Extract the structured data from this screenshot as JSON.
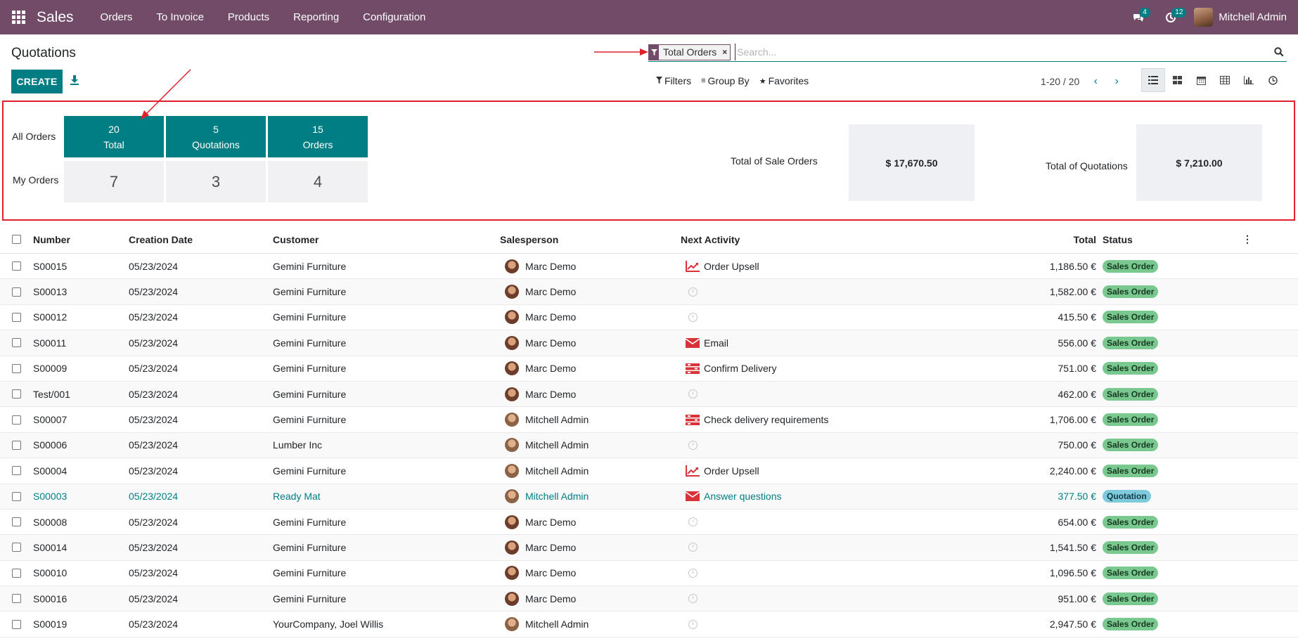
{
  "app": {
    "name": "Sales"
  },
  "menu": [
    "Orders",
    "To Invoice",
    "Products",
    "Reporting",
    "Configuration"
  ],
  "systray": {
    "messages_count": "4",
    "activities_count": "12",
    "user_name": "Mitchell Admin"
  },
  "page": {
    "title": "Quotations",
    "create_label": "CREATE"
  },
  "search": {
    "facet_label": "Total Orders",
    "placeholder": "Search..."
  },
  "filters": {
    "filters_label": "Filters",
    "groupby_label": "Group By",
    "favorites_label": "Favorites"
  },
  "pager": {
    "text": "1-20 / 20"
  },
  "dashboard": {
    "all_orders_label": "All Orders",
    "my_orders_label": "My Orders",
    "tiles": [
      {
        "count": "20",
        "label": "Total",
        "mine": "7"
      },
      {
        "count": "5",
        "label": "Quotations",
        "mine": "3"
      },
      {
        "count": "15",
        "label": "Orders",
        "mine": "4"
      }
    ],
    "sale_orders_label": "Total of Sale Orders",
    "sale_orders_value": "$ 17,670.50",
    "quotations_label": "Total of Quotations",
    "quotations_value": "$ 7,210.00"
  },
  "columns": {
    "number": "Number",
    "date": "Creation Date",
    "customer": "Customer",
    "salesperson": "Salesperson",
    "activity": "Next Activity",
    "total": "Total",
    "status": "Status"
  },
  "rows": [
    {
      "number": "S00015",
      "date": "05/23/2024",
      "customer": "Gemini Furniture",
      "salesperson": "Marc Demo",
      "activity": "Order Upsell",
      "activity_icon": "upsell-icon",
      "total": "1,186.50 €",
      "status": "Sales Order"
    },
    {
      "number": "S00013",
      "date": "05/23/2024",
      "customer": "Gemini Furniture",
      "salesperson": "Marc Demo",
      "activity": "",
      "activity_icon": "clock-icon",
      "total": "1,582.00 €",
      "status": "Sales Order"
    },
    {
      "number": "S00012",
      "date": "05/23/2024",
      "customer": "Gemini Furniture",
      "salesperson": "Marc Demo",
      "activity": "",
      "activity_icon": "clock-icon",
      "total": "415.50 €",
      "status": "Sales Order"
    },
    {
      "number": "S00011",
      "date": "05/23/2024",
      "customer": "Gemini Furniture",
      "salesperson": "Marc Demo",
      "activity": "Email",
      "activity_icon": "email-icon",
      "total": "556.00 €",
      "status": "Sales Order"
    },
    {
      "number": "S00009",
      "date": "05/23/2024",
      "customer": "Gemini Furniture",
      "salesperson": "Marc Demo",
      "activity": "Confirm Delivery",
      "activity_icon": "delivery-icon",
      "total": "751.00 €",
      "status": "Sales Order"
    },
    {
      "number": "Test/001",
      "date": "05/23/2024",
      "customer": "Gemini Furniture",
      "salesperson": "Marc Demo",
      "activity": "",
      "activity_icon": "clock-icon",
      "total": "462.00 €",
      "status": "Sales Order"
    },
    {
      "number": "S00007",
      "date": "05/23/2024",
      "customer": "Gemini Furniture",
      "salesperson": "Mitchell Admin",
      "activity": "Check delivery requirements",
      "activity_icon": "delivery-icon",
      "total": "1,706.00 €",
      "status": "Sales Order"
    },
    {
      "number": "S00006",
      "date": "05/23/2024",
      "customer": "Lumber Inc",
      "salesperson": "Mitchell Admin",
      "activity": "",
      "activity_icon": "clock-icon",
      "total": "750.00 €",
      "status": "Sales Order"
    },
    {
      "number": "S00004",
      "date": "05/23/2024",
      "customer": "Gemini Furniture",
      "salesperson": "Mitchell Admin",
      "activity": "Order Upsell",
      "activity_icon": "upsell-icon",
      "total": "2,240.00 €",
      "status": "Sales Order"
    },
    {
      "number": "S00003",
      "date": "05/23/2024",
      "customer": "Ready Mat",
      "salesperson": "Mitchell Admin",
      "activity": "Answer questions",
      "activity_icon": "email-icon",
      "total": "377.50 €",
      "status": "Quotation"
    },
    {
      "number": "S00008",
      "date": "05/23/2024",
      "customer": "Gemini Furniture",
      "salesperson": "Marc Demo",
      "activity": "",
      "activity_icon": "clock-icon",
      "total": "654.00 €",
      "status": "Sales Order"
    },
    {
      "number": "S00014",
      "date": "05/23/2024",
      "customer": "Gemini Furniture",
      "salesperson": "Marc Demo",
      "activity": "",
      "activity_icon": "clock-icon",
      "total": "1,541.50 €",
      "status": "Sales Order"
    },
    {
      "number": "S00010",
      "date": "05/23/2024",
      "customer": "Gemini Furniture",
      "salesperson": "Marc Demo",
      "activity": "",
      "activity_icon": "clock-icon",
      "total": "1,096.50 €",
      "status": "Sales Order"
    },
    {
      "number": "S00016",
      "date": "05/23/2024",
      "customer": "Gemini Furniture",
      "salesperson": "Marc Demo",
      "activity": "",
      "activity_icon": "clock-icon",
      "total": "951.00 €",
      "status": "Sales Order"
    },
    {
      "number": "S00019",
      "date": "05/23/2024",
      "customer": "YourCompany, Joel Willis",
      "salesperson": "Mitchell Admin",
      "activity": "",
      "activity_icon": "clock-icon",
      "total": "2,947.50 €",
      "status": "Sales Order"
    }
  ],
  "colors": {
    "brand": "#714b67",
    "accent": "#017e84",
    "annotation": "#e0202b",
    "sales_order_badge": "#78c88f",
    "quotation_badge": "#7ec9dc"
  }
}
